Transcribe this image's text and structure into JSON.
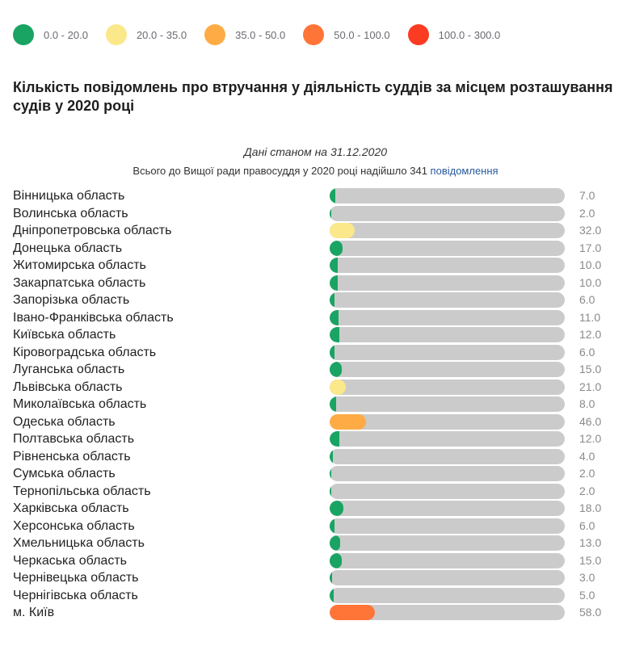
{
  "legend": [
    {
      "label": "0.0 - 20.0",
      "color": "#19a463",
      "min": 0,
      "max": 20
    },
    {
      "label": "20.0 - 35.0",
      "color": "#fbe88a",
      "min": 20,
      "max": 35
    },
    {
      "label": "35.0 - 50.0",
      "color": "#ffab45",
      "min": 35,
      "max": 50
    },
    {
      "label": "50.0 - 100.0",
      "color": "#ff7537",
      "min": 50,
      "max": 100
    },
    {
      "label": "100.0 - 300.0",
      "color": "#fb3b22",
      "min": 100,
      "max": 300
    }
  ],
  "header": {
    "title": "Кількість повідомлень про втручання у діяльність суддів за місцем розташування судів у 2020 році",
    "subtitle": "Дані станом на 31.12.2020",
    "total_prefix": "Всього до Вищої ради правосуддя у 2020 році надійшло 341 ",
    "total_link": "повідомлення"
  },
  "chart_data": {
    "type": "bar",
    "orientation": "horizontal",
    "title": "Кількість повідомлень про втручання у діяльність суддів за місцем розташування судів у 2020 році",
    "subtitle": "Дані станом на 31.12.2020",
    "xlim": [
      0,
      300
    ],
    "grid": false,
    "legend_position": "top-left",
    "categories": [
      "Вінницька область",
      "Волинська область",
      "Дніпропетровська область",
      "Донецька область",
      "Житомирська область",
      "Закарпатська область",
      "Запорізька область",
      "Івано-Франківська область",
      "Київська область",
      "Кіровоградська область",
      "Луганська область",
      "Львівська область",
      "Миколаївська область",
      "Одеська область",
      "Полтавська область",
      "Рівненська область",
      "Сумська область",
      "Тернопільська область",
      "Харківська область",
      "Херсонська область",
      "Хмельницька область",
      "Черкаська область",
      "Чернівецька область",
      "Чернігівська область",
      "м. Київ"
    ],
    "values": [
      7,
      2,
      32,
      17,
      10,
      10,
      6,
      11,
      12,
      6,
      15,
      21,
      8,
      46,
      12,
      4,
      2,
      2,
      18,
      6,
      13,
      15,
      3,
      5,
      58
    ],
    "value_labels": [
      "7.0",
      "2.0",
      "32.0",
      "17.0",
      "10.0",
      "10.0",
      "6.0",
      "11.0",
      "12.0",
      "6.0",
      "15.0",
      "21.0",
      "8.0",
      "46.0",
      "12.0",
      "4.0",
      "2.0",
      "2.0",
      "18.0",
      "6.0",
      "13.0",
      "15.0",
      "3.0",
      "5.0",
      "58.0"
    ],
    "track_color": "#cbcbcb"
  }
}
